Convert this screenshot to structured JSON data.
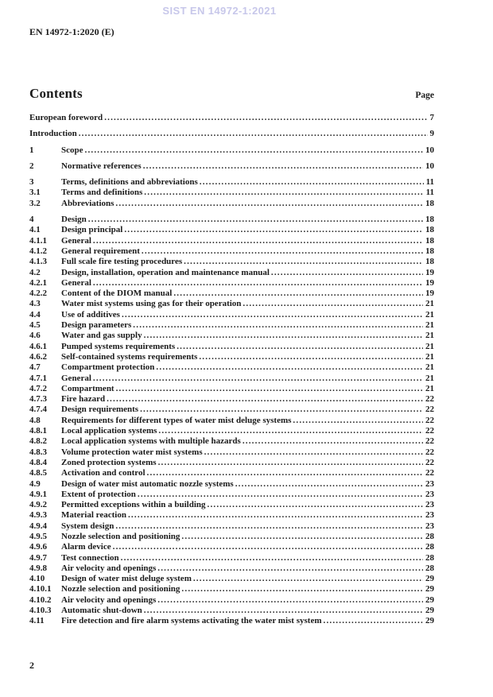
{
  "watermark": "SIST EN 14972-1:2021",
  "doc_ref": "EN 14972-1:2020 (E)",
  "colors": {
    "watermark": "#c7c7ea",
    "text": "#1b1b1b"
  },
  "contents": {
    "heading": "Contents",
    "page_label": "Page",
    "entries": [
      {
        "num": "",
        "title": "European foreword",
        "page": "7",
        "level": 1
      },
      {
        "num": "",
        "title": "Introduction",
        "page": "9",
        "level": 1
      },
      {
        "num": "1",
        "title": "Scope",
        "page": "10",
        "level": 1
      },
      {
        "num": "2",
        "title": "Normative references",
        "page": "10",
        "level": 1
      },
      {
        "num": "3",
        "title": "Terms, definitions and abbreviations",
        "page": "11",
        "level": 1
      },
      {
        "num": "3.1",
        "title": "Terms and definitions",
        "page": "11",
        "level": 2
      },
      {
        "num": "3.2",
        "title": "Abbreviations",
        "page": "18",
        "level": 2
      },
      {
        "num": "4",
        "title": "Design",
        "page": "18",
        "level": 1
      },
      {
        "num": "4.1",
        "title": "Design principal",
        "page": "18",
        "level": 2
      },
      {
        "num": "4.1.1",
        "title": "General",
        "page": "18",
        "level": 2
      },
      {
        "num": "4.1.2",
        "title": "General requirement",
        "page": "18",
        "level": 2
      },
      {
        "num": "4.1.3",
        "title": "Full scale fire testing procedures",
        "page": "18",
        "level": 2
      },
      {
        "num": "4.2",
        "title": "Design, installation, operation and maintenance manual",
        "page": "19",
        "level": 2
      },
      {
        "num": "4.2.1",
        "title": "General",
        "page": "19",
        "level": 2
      },
      {
        "num": "4.2.2",
        "title": "Content of the DIOM manual",
        "page": "19",
        "level": 2
      },
      {
        "num": "4.3",
        "title": "Water mist systems using gas for their operation",
        "page": "21",
        "level": 2
      },
      {
        "num": "4.4",
        "title": "Use of additives",
        "page": "21",
        "level": 2
      },
      {
        "num": "4.5",
        "title": "Design parameters",
        "page": "21",
        "level": 2
      },
      {
        "num": "4.6",
        "title": "Water and gas supply",
        "page": "21",
        "level": 2
      },
      {
        "num": "4.6.1",
        "title": "Pumped systems requirements",
        "page": "21",
        "level": 2
      },
      {
        "num": "4.6.2",
        "title": "Self-contained systems requirements",
        "page": "21",
        "level": 2
      },
      {
        "num": "4.7",
        "title": "Compartment protection",
        "page": "21",
        "level": 2
      },
      {
        "num": "4.7.1",
        "title": "General",
        "page": "21",
        "level": 2
      },
      {
        "num": "4.7.2",
        "title": "Compartment",
        "page": "21",
        "level": 2
      },
      {
        "num": "4.7.3",
        "title": "Fire hazard",
        "page": "22",
        "level": 2
      },
      {
        "num": "4.7.4",
        "title": "Design requirements",
        "page": "22",
        "level": 2
      },
      {
        "num": "4.8",
        "title": "Requirements for different types of water mist deluge systems",
        "page": "22",
        "level": 2
      },
      {
        "num": "4.8.1",
        "title": "Local application systems",
        "page": "22",
        "level": 2
      },
      {
        "num": "4.8.2",
        "title": "Local application systems with multiple hazards",
        "page": "22",
        "level": 2
      },
      {
        "num": "4.8.3",
        "title": "Volume protection water mist systems",
        "page": "22",
        "level": 2
      },
      {
        "num": "4.8.4",
        "title": "Zoned protection systems",
        "page": "22",
        "level": 2
      },
      {
        "num": "4.8.5",
        "title": "Activation and control",
        "page": "22",
        "level": 2
      },
      {
        "num": "4.9",
        "title": "Design of water mist automatic nozzle systems",
        "page": "23",
        "level": 2
      },
      {
        "num": "4.9.1",
        "title": "Extent of protection",
        "page": "23",
        "level": 2
      },
      {
        "num": "4.9.2",
        "title": "Permitted exceptions within a building",
        "page": "23",
        "level": 2
      },
      {
        "num": "4.9.3",
        "title": "Material reaction",
        "page": "23",
        "level": 2
      },
      {
        "num": "4.9.4",
        "title": "System design",
        "page": "23",
        "level": 2
      },
      {
        "num": "4.9.5",
        "title": "Nozzle selection and positioning",
        "page": "28",
        "level": 2
      },
      {
        "num": "4.9.6",
        "title": "Alarm device",
        "page": "28",
        "level": 2
      },
      {
        "num": "4.9.7",
        "title": "Test connection",
        "page": "28",
        "level": 2
      },
      {
        "num": "4.9.8",
        "title": "Air velocity and openings",
        "page": "28",
        "level": 2
      },
      {
        "num": "4.10",
        "title": "Design of water mist deluge system",
        "page": "29",
        "level": 2
      },
      {
        "num": "4.10.1",
        "title": "Nozzle selection and positioning",
        "page": "29",
        "level": 2
      },
      {
        "num": "4.10.2",
        "title": "Air velocity and openings",
        "page": "29",
        "level": 2
      },
      {
        "num": "4.10.3",
        "title": "Automatic shut-down",
        "page": "29",
        "level": 2
      },
      {
        "num": "4.11",
        "title": "Fire detection and fire alarm systems activating the water mist system",
        "page": "29",
        "level": 2
      }
    ]
  },
  "footer": {
    "page_number": "2"
  }
}
